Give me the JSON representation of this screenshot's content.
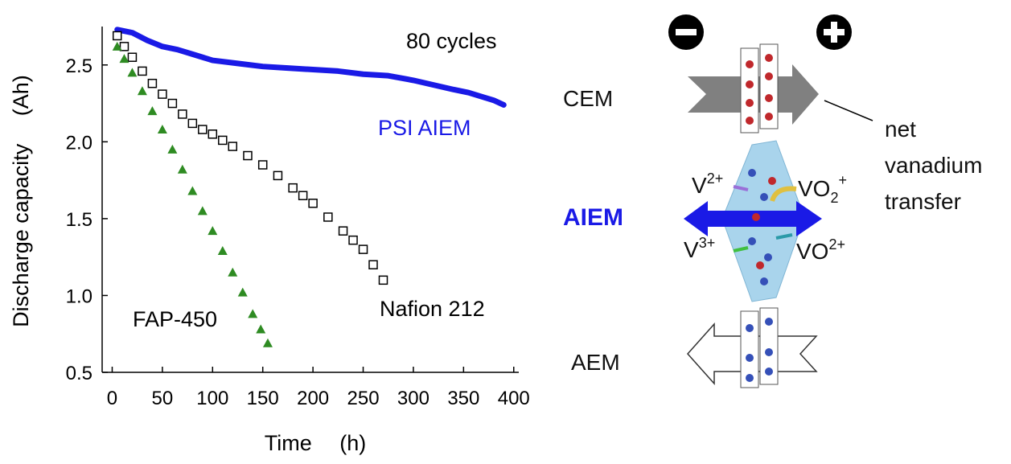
{
  "chart_data": {
    "type": "line",
    "annotations": [
      "80 cycles"
    ],
    "x_label": "Time  (h)",
    "y_label": "Discharge capacity  (Ah)",
    "xlim": [
      -10,
      405
    ],
    "ylim": [
      0.5,
      2.75
    ],
    "xticks": [
      0,
      50,
      100,
      150,
      200,
      250,
      300,
      350,
      400
    ],
    "yticks": [
      {
        "value": 0.5,
        "label": "0.5"
      },
      {
        "value": 1.0,
        "label": "1.0"
      },
      {
        "value": 1.5,
        "label": "1.5"
      },
      {
        "value": 2.0,
        "label": "2.0"
      },
      2.5
    ],
    "series": [
      {
        "name": "PSI AIEM",
        "color": "#1a1ae6",
        "marker": "line",
        "x": [
          5,
          20,
          35,
          50,
          65,
          80,
          100,
          125,
          150,
          175,
          200,
          225,
          250,
          275,
          300,
          320,
          340,
          355,
          370,
          380,
          390
        ],
        "values": [
          2.73,
          2.71,
          2.66,
          2.62,
          2.6,
          2.57,
          2.53,
          2.51,
          2.49,
          2.48,
          2.47,
          2.46,
          2.44,
          2.43,
          2.4,
          2.37,
          2.34,
          2.32,
          2.29,
          2.27,
          2.24
        ]
      },
      {
        "name": "Nafion 212",
        "color": "#000000",
        "marker": "square",
        "x": [
          5,
          12,
          20,
          30,
          40,
          50,
          60,
          70,
          80,
          90,
          100,
          110,
          120,
          135,
          150,
          165,
          180,
          190,
          200,
          215,
          230,
          240,
          250,
          260,
          270
        ],
        "values": [
          2.69,
          2.62,
          2.55,
          2.46,
          2.38,
          2.31,
          2.25,
          2.18,
          2.12,
          2.08,
          2.05,
          2.01,
          1.97,
          1.91,
          1.85,
          1.78,
          1.7,
          1.65,
          1.6,
          1.51,
          1.42,
          1.36,
          1.3,
          1.2,
          1.1
        ]
      },
      {
        "name": "FAP-450",
        "color": "#2e8b22",
        "marker": "triangle",
        "x": [
          5,
          12,
          20,
          30,
          40,
          50,
          60,
          70,
          80,
          90,
          100,
          110,
          120,
          130,
          140,
          148,
          155
        ],
        "values": [
          2.62,
          2.54,
          2.45,
          2.33,
          2.2,
          2.08,
          1.95,
          1.82,
          1.68,
          1.55,
          1.42,
          1.29,
          1.15,
          1.02,
          0.88,
          0.78,
          0.69
        ]
      }
    ]
  },
  "diagram": {
    "rows": [
      "CEM",
      "AIEM",
      "AEM"
    ],
    "note": [
      "net",
      "vanadium",
      "transfer"
    ],
    "ions": [
      {
        "base": "V",
        "sup": "2+"
      },
      {
        "base": "VO",
        "sub": "2",
        "sup": "+"
      },
      {
        "base": "V",
        "sup": "3+"
      },
      {
        "base": "VO",
        "sup": "2+"
      }
    ]
  }
}
